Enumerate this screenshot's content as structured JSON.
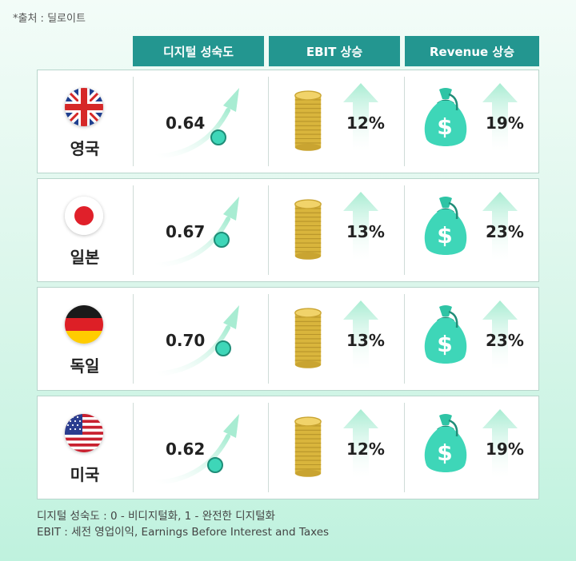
{
  "source": "*출처 : 딜로이트",
  "headers": {
    "digital": "디지털 성숙도",
    "ebit": "EBIT 상승",
    "revenue": "Revenue 상승"
  },
  "rows": [
    {
      "country": "영국",
      "flag_icon": "uk-flag-icon",
      "maturity": "0.64",
      "ebit": "12%",
      "revenue": "19%"
    },
    {
      "country": "일본",
      "flag_icon": "japan-flag-icon",
      "maturity": "0.67",
      "ebit": "13%",
      "revenue": "23%"
    },
    {
      "country": "독일",
      "flag_icon": "germany-flag-icon",
      "maturity": "0.70",
      "ebit": "13%",
      "revenue": "23%"
    },
    {
      "country": "미국",
      "flag_icon": "usa-flag-icon",
      "maturity": "0.62",
      "ebit": "12%",
      "revenue": "19%"
    }
  ],
  "notes": [
    "디지털 성숙도 : 0 - 비디지털화, 1 - 완전한 디지털화",
    "EBIT : 세전 영업이익, Earnings Before Interest and Taxes"
  ],
  "colors": {
    "header": "#239690",
    "accent": "#3ed6b8",
    "coin": "#e5c34a",
    "arrow": "#bff0dc"
  }
}
